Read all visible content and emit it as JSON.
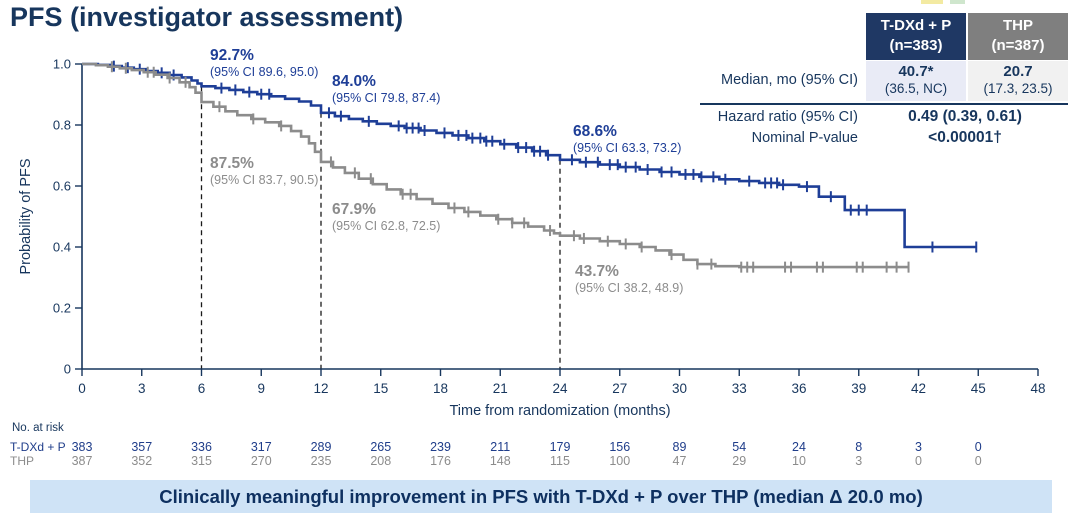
{
  "title": "PFS (investigator assessment)",
  "stats_table": {
    "columns": [
      {
        "line1": "T-DXd + P",
        "line2": "(n=383)"
      },
      {
        "line1": "THP",
        "line2": "(n=387)"
      }
    ],
    "median": {
      "label": "Median, mo (95% CI)",
      "tdxd_value": "40.7*",
      "tdxd_ci": "(36.5, NC)",
      "thp_value": "20.7",
      "thp_ci": "(17.3, 23.5)"
    },
    "hazard_ratio": {
      "label": "Hazard ratio (95% CI)",
      "value": "0.49 (0.39, 0.61)"
    },
    "p_value": {
      "label": "Nominal P-value",
      "value": "<0.00001†"
    }
  },
  "chart_data": {
    "type": "line",
    "subtype": "kaplan-meier-step",
    "title": "PFS (investigator assessment)",
    "xlabel": "Time from randomization (months)",
    "ylabel": "Probability of PFS",
    "xlim": [
      0,
      48
    ],
    "ylim": [
      0,
      1
    ],
    "xticks": [
      0,
      3,
      6,
      9,
      12,
      15,
      18,
      21,
      24,
      27,
      30,
      33,
      36,
      39,
      42,
      45,
      48
    ],
    "yticks": [
      0,
      0.2,
      0.4,
      0.6,
      0.8,
      1.0
    ],
    "ytick_labels": [
      "0",
      "0.2",
      "0.4",
      "0.6",
      "0.8",
      "1.0"
    ],
    "grid": false,
    "legend_position": "none",
    "dashed_reference_lines": [
      {
        "x": 6,
        "top_y": 0.927
      },
      {
        "x": 12,
        "top_y": 0.84
      },
      {
        "x": 24,
        "top_y": 0.686
      }
    ],
    "series": [
      {
        "name": "T-DXd + P",
        "color": "#1e3e97",
        "landmarks": [
          {
            "x": 6,
            "value": "92.7%",
            "ci": "(95% CI 89.6, 95.0)"
          },
          {
            "x": 12,
            "value": "84.0%",
            "ci": "(95% CI 79.8, 87.4)"
          },
          {
            "x": 24,
            "value": "68.6%",
            "ci": "(95% CI 63.3, 73.2)"
          }
        ],
        "steps": [
          [
            0,
            1.0
          ],
          [
            0.8,
            0.997
          ],
          [
            1.4,
            0.993
          ],
          [
            2,
            0.988
          ],
          [
            2.6,
            0.983
          ],
          [
            3.2,
            0.977
          ],
          [
            3.8,
            0.971
          ],
          [
            4.4,
            0.964
          ],
          [
            5,
            0.956
          ],
          [
            5.5,
            0.946
          ],
          [
            5.8,
            0.936
          ],
          [
            6,
            0.927
          ],
          [
            6.7,
            0.921
          ],
          [
            7.4,
            0.915
          ],
          [
            8.1,
            0.908
          ],
          [
            8.8,
            0.901
          ],
          [
            9.5,
            0.894
          ],
          [
            10.2,
            0.886
          ],
          [
            10.9,
            0.877
          ],
          [
            11.5,
            0.864
          ],
          [
            12,
            0.84
          ],
          [
            12.7,
            0.829
          ],
          [
            13.4,
            0.82
          ],
          [
            14.1,
            0.812
          ],
          [
            14.8,
            0.804
          ],
          [
            15.5,
            0.797
          ],
          [
            16.2,
            0.79
          ],
          [
            17,
            0.782
          ],
          [
            17.8,
            0.774
          ],
          [
            18.6,
            0.766
          ],
          [
            19.4,
            0.757
          ],
          [
            20.2,
            0.747
          ],
          [
            21,
            0.737
          ],
          [
            21.8,
            0.726
          ],
          [
            22.6,
            0.714
          ],
          [
            23.3,
            0.701
          ],
          [
            24,
            0.686
          ],
          [
            25,
            0.678
          ],
          [
            26,
            0.67
          ],
          [
            27,
            0.662
          ],
          [
            28,
            0.654
          ],
          [
            29,
            0.646
          ],
          [
            30,
            0.638
          ],
          [
            31,
            0.63
          ],
          [
            32,
            0.622
          ],
          [
            33,
            0.616
          ],
          [
            34,
            0.61
          ],
          [
            35,
            0.604
          ],
          [
            36,
            0.598
          ],
          [
            37,
            0.565
          ],
          [
            38.3,
            0.521
          ],
          [
            41.3,
            0.4
          ],
          [
            44.9,
            0.4
          ]
        ],
        "censor_ticks": [
          1.6,
          2.3,
          2.9,
          4.0,
          4.6,
          7.0,
          7.7,
          8.4,
          9.0,
          9.4,
          12.4,
          13.0,
          14.4,
          15.9,
          16.3,
          16.6,
          16.9,
          17.2,
          18.2,
          18.9,
          19.3,
          19.6,
          20.0,
          20.3,
          20.6,
          21.2,
          21.9,
          22.3,
          22.7,
          23.0,
          23.4,
          24.6,
          25.3,
          25.9,
          26.5,
          26.9,
          27.3,
          27.8,
          28.4,
          29.1,
          29.6,
          30.3,
          30.7,
          31.1,
          31.7,
          32.3,
          33.5,
          34.3,
          34.6,
          34.9,
          35.2,
          36.4,
          37.6,
          38.6,
          39.0,
          39.4,
          42.7,
          44.9
        ]
      },
      {
        "name": "THP",
        "color": "#8c8c8c",
        "landmarks": [
          {
            "x": 6,
            "value": "87.5%",
            "ci": "(95% CI 83.7, 90.5)"
          },
          {
            "x": 12,
            "value": "67.9%",
            "ci": "(95% CI 62.8, 72.5)"
          },
          {
            "x": 24,
            "value": "43.7%",
            "ci": "(95% CI 38.2, 48.9)"
          }
        ],
        "steps": [
          [
            0,
            1.0
          ],
          [
            0.7,
            0.996
          ],
          [
            1.3,
            0.991
          ],
          [
            1.9,
            0.986
          ],
          [
            2.5,
            0.98
          ],
          [
            3.1,
            0.973
          ],
          [
            3.7,
            0.965
          ],
          [
            4.3,
            0.954
          ],
          [
            4.9,
            0.94
          ],
          [
            5.4,
            0.924
          ],
          [
            5.7,
            0.906
          ],
          [
            6,
            0.875
          ],
          [
            6.6,
            0.86
          ],
          [
            7.2,
            0.845
          ],
          [
            7.8,
            0.832
          ],
          [
            8.5,
            0.82
          ],
          [
            9.2,
            0.809
          ],
          [
            9.9,
            0.797
          ],
          [
            10.5,
            0.78
          ],
          [
            11,
            0.762
          ],
          [
            11.4,
            0.74
          ],
          [
            11.7,
            0.712
          ],
          [
            12,
            0.679
          ],
          [
            12.6,
            0.661
          ],
          [
            13.2,
            0.643
          ],
          [
            13.9,
            0.624
          ],
          [
            14.6,
            0.606
          ],
          [
            15.3,
            0.589
          ],
          [
            16,
            0.573
          ],
          [
            16.8,
            0.557
          ],
          [
            17.6,
            0.542
          ],
          [
            18.4,
            0.528
          ],
          [
            19.2,
            0.515
          ],
          [
            20,
            0.503
          ],
          [
            20.8,
            0.491
          ],
          [
            21.6,
            0.479
          ],
          [
            22.4,
            0.467
          ],
          [
            23.2,
            0.454
          ],
          [
            23.7,
            0.445
          ],
          [
            24,
            0.437
          ],
          [
            25,
            0.428
          ],
          [
            26,
            0.419
          ],
          [
            27,
            0.41
          ],
          [
            28,
            0.4
          ],
          [
            28.8,
            0.389
          ],
          [
            29.5,
            0.375
          ],
          [
            30.2,
            0.358
          ],
          [
            30.9,
            0.344
          ],
          [
            31.8,
            0.337
          ],
          [
            33,
            0.334
          ],
          [
            41.5,
            0.334
          ]
        ],
        "censor_ticks": [
          1.5,
          2.2,
          3.3,
          3.6,
          4.4,
          5.2,
          6.9,
          8.6,
          10.0,
          12.5,
          13.7,
          14.5,
          16.1,
          16.5,
          18.7,
          19.4,
          20.9,
          21.6,
          22.2,
          23.5,
          24.7,
          25.2,
          26.4,
          27.3,
          28.1,
          29.6,
          30.9,
          31.6,
          33.1,
          33.4,
          33.7,
          35.3,
          35.6,
          36.9,
          37.2,
          38.9,
          39.2,
          40.4,
          40.9,
          41.5
        ]
      }
    ]
  },
  "at_risk": {
    "label": "No. at risk",
    "timepoints": [
      0,
      3,
      6,
      9,
      12,
      15,
      18,
      21,
      24,
      27,
      30,
      33,
      36,
      39,
      42,
      45
    ],
    "rows": [
      {
        "name": "T-DXd + P",
        "color": "#1f3d8a",
        "values": [
          383,
          357,
          336,
          317,
          289,
          265,
          239,
          211,
          179,
          156,
          89,
          54,
          24,
          8,
          3,
          0
        ]
      },
      {
        "name": "THP",
        "color": "#8c8c8c",
        "values": [
          387,
          352,
          315,
          270,
          235,
          208,
          176,
          148,
          115,
          100,
          47,
          29,
          10,
          3,
          0,
          0
        ]
      }
    ]
  },
  "banner": {
    "text": "Clinically meaningful improvement in PFS with T-DXd + P over THP (median Δ 20.0 mo)"
  },
  "colors": {
    "navy_text": "#17365D",
    "tdxd_blue": "#1e3e97",
    "thp_gray": "#8c8c8c",
    "header_blue_bg": "#1F3864",
    "header_gray_bg": "#7F7F7F",
    "cell_blue_bg": "#E9EBF6",
    "cell_gray_bg": "#F1F1F1",
    "banner_bg": "#CFE3F6",
    "dashed_line": "#1a1a1a"
  }
}
